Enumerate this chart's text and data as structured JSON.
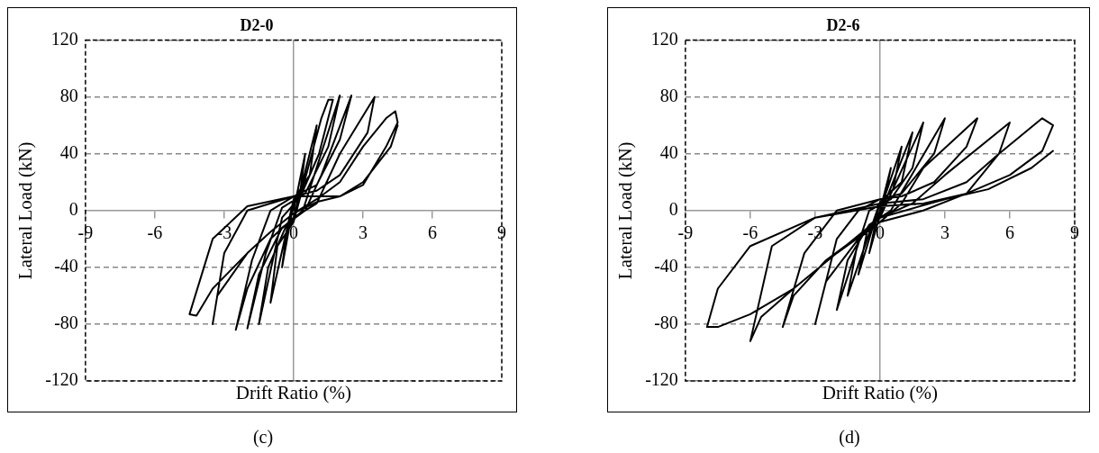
{
  "chart_data": [
    {
      "type": "line",
      "title": "D2-0",
      "xlabel": "Drift Ratio (%)",
      "ylabel": "Lateral Load (kN)",
      "xlim": [
        -9,
        9
      ],
      "xticks": [
        -9,
        -6,
        -3,
        0,
        3,
        6,
        9
      ],
      "ylim": [
        -120,
        120
      ],
      "yticks": [
        -120,
        -80,
        -40,
        0,
        40,
        80,
        120
      ],
      "grid": "y",
      "legend": false,
      "marker": "none",
      "line_style": "solid",
      "annotations": [
        "(c)"
      ],
      "series": [
        {
          "color": "#000000",
          "x": [
            0,
            0.5,
            0.3,
            0,
            -0.5,
            -0.3,
            0,
            1,
            0.7,
            0,
            -1,
            -0.7,
            0,
            1.2,
            1.5,
            1.7,
            1.1,
            0.3,
            -0.5,
            -1.5,
            -1.1,
            -0.3,
            0.4,
            2,
            1.5,
            0.5,
            -0.5,
            -1.2,
            -2,
            -1.5,
            -0.5,
            0.5,
            1.2,
            2.5,
            2,
            1,
            0,
            -1,
            -1.8,
            -2.5,
            -2,
            -1,
            0,
            1,
            2,
            3.5,
            3.2,
            2,
            1,
            0,
            -2,
            -3,
            -3.5,
            -3.3,
            -2,
            -1,
            0,
            1,
            2,
            3,
            4,
            4.4,
            4.5,
            4,
            3,
            2,
            0,
            -2,
            -3.5,
            -4.5,
            -4.2,
            -3.5,
            -2,
            -1,
            0,
            1,
            2,
            3,
            4.2,
            4.5
          ],
          "values": [
            0,
            40,
            15,
            5,
            -40,
            -15,
            -5,
            60,
            25,
            8,
            -65,
            -25,
            -8,
            65,
            78,
            78,
            40,
            10,
            -5,
            -80,
            -40,
            -10,
            0,
            81,
            45,
            12,
            2,
            -30,
            -83,
            -45,
            -12,
            0,
            25,
            81,
            50,
            18,
            10,
            0,
            -35,
            -84,
            -55,
            -20,
            -5,
            5,
            40,
            80,
            55,
            25,
            14,
            10,
            0,
            -30,
            -80,
            -60,
            -30,
            -15,
            -2,
            8,
            20,
            45,
            65,
            70,
            62,
            45,
            18,
            10,
            10,
            3,
            -20,
            -73,
            -74,
            -55,
            -30,
            -15,
            -2,
            6,
            10,
            20,
            45,
            60
          ]
        }
      ]
    },
    {
      "type": "line",
      "title": "D2-6",
      "xlabel": "Drift Ratio (%)",
      "ylabel": "Lateral Load (kN)",
      "xlim": [
        -9,
        9
      ],
      "xticks": [
        -9,
        -6,
        -3,
        0,
        3,
        6,
        9
      ],
      "ylim": [
        -120,
        120
      ],
      "yticks": [
        -120,
        -80,
        -40,
        0,
        40,
        80,
        120
      ],
      "grid": "y",
      "legend": false,
      "marker": "none",
      "line_style": "solid",
      "annotations": [
        "(d)"
      ],
      "series": [
        {
          "color": "#000000",
          "x": [
            0,
            0.5,
            0.2,
            -0.5,
            -0.2,
            0,
            1,
            0.6,
            0,
            -1,
            -0.6,
            0,
            1.5,
            1,
            0,
            -1.5,
            -1,
            0,
            2,
            1.5,
            0.5,
            -0.5,
            -2,
            -1.5,
            -0.5,
            0.5,
            3,
            2.5,
            1,
            0,
            -1,
            -2,
            -3,
            -2.5,
            -1,
            0,
            1,
            2,
            4.5,
            4,
            2.5,
            1,
            0,
            -2,
            -3.5,
            -4.5,
            -4,
            -2.5,
            -1,
            0,
            1.5,
            3,
            6,
            5.5,
            4,
            2,
            0,
            -3,
            -5,
            -6,
            -5.5,
            -4,
            -2,
            0,
            2,
            4,
            5.5,
            7.5,
            8,
            7.5,
            6,
            4,
            2,
            0,
            -3,
            -6,
            -7.5,
            -8,
            -7.5,
            -6,
            -4,
            -2,
            0,
            3,
            5,
            7,
            8
          ],
          "values": [
            0,
            30,
            8,
            -30,
            -8,
            0,
            45,
            15,
            5,
            -45,
            -15,
            -3,
            55,
            20,
            6,
            -60,
            -20,
            -5,
            62,
            30,
            8,
            0,
            -70,
            -35,
            -10,
            0,
            65,
            40,
            12,
            8,
            0,
            -20,
            -80,
            -50,
            -20,
            -8,
            5,
            30,
            65,
            45,
            20,
            10,
            8,
            0,
            -30,
            -82,
            -60,
            -35,
            -18,
            -5,
            5,
            25,
            62,
            40,
            20,
            8,
            5,
            -5,
            -25,
            -92,
            -75,
            -55,
            -30,
            -8,
            0,
            12,
            40,
            65,
            60,
            42,
            25,
            12,
            5,
            3,
            -5,
            -25,
            -55,
            -82,
            -82,
            -73,
            -55,
            -30,
            -5,
            8,
            15,
            30,
            42
          ]
        }
      ]
    }
  ]
}
